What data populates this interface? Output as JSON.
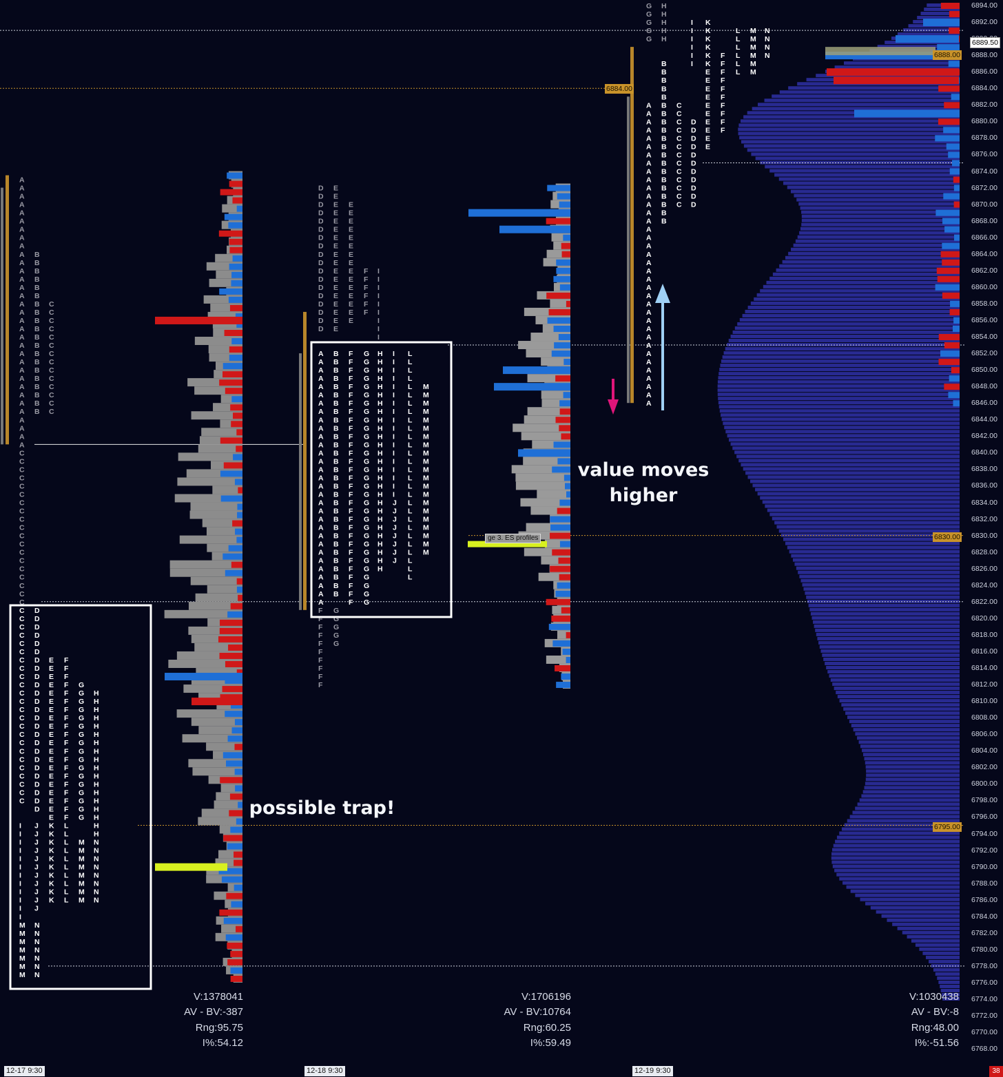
{
  "chart_data": {
    "type": "market-profile",
    "price_axis": {
      "min": 6766,
      "max": 6894,
      "tick_labels": [
        "6894.00",
        "6892.00",
        "6890.00",
        "6888.00",
        "6886.00",
        "6884.00",
        "6882.00",
        "6880.00",
        "6878.00",
        "6876.00",
        "6874.00",
        "6872.00",
        "6870.00",
        "6868.00",
        "6866.00",
        "6864.00",
        "6862.00",
        "6860.00",
        "6858.00",
        "6856.00",
        "6854.00",
        "6852.00",
        "6850.00",
        "6848.00",
        "6846.00",
        "6844.00",
        "6842.00",
        "6840.00",
        "6838.00",
        "6836.00",
        "6834.00",
        "6832.00",
        "6830.00",
        "6828.00",
        "6826.00",
        "6824.00",
        "6822.00",
        "6820.00",
        "6818.00",
        "6816.00",
        "6814.00",
        "6812.00",
        "6810.00",
        "6808.00",
        "6806.00",
        "6804.00",
        "6802.00",
        "6800.00",
        "6798.00",
        "6796.00",
        "6794.00",
        "6792.00",
        "6790.00",
        "6788.00",
        "6786.00",
        "6784.00",
        "6782.00",
        "6780.00",
        "6778.00",
        "6776.00",
        "6774.00",
        "6772.00",
        "6770.00",
        "6768.00"
      ]
    },
    "sessions": [
      {
        "date_label": "12-17 9:30",
        "stats": [
          "V:1378041",
          "AV - BV:-387",
          "Rng:95.75",
          "I%:54.12"
        ],
        "poc": "6795.00",
        "high": 6873.75,
        "low": 6778.0
      },
      {
        "date_label": "12-18 9:30",
        "stats": [
          "V:1706196",
          "AV - BV:10764",
          "Rng:60.25",
          "I%:59.49"
        ],
        "poc": "6830.00",
        "high": 6872.0,
        "low": 6811.75
      },
      {
        "date_label": "12-19 9:30",
        "stats": [
          "V:1030438",
          "AV - BV:-8",
          "Rng:48.00",
          "I%:-51.56"
        ],
        "poc": "6888.00",
        "high": 6894.0,
        "low": 6846.0
      }
    ],
    "current_price": "6889.50",
    "price_tags": [
      "6884.00"
    ],
    "annotations": [
      "possible trap!",
      "value moves higher"
    ],
    "small_label": "ge 3. ES profiles"
  },
  "colors": {
    "background": "#05071a",
    "bid": "#1f6fd6",
    "ask": "#d01818",
    "volume": "#8a8a8a",
    "poc": "#c9932a",
    "highlight": "#d8f020",
    "volume_profile": "#2c2f9e"
  },
  "bottom_badge": "38"
}
